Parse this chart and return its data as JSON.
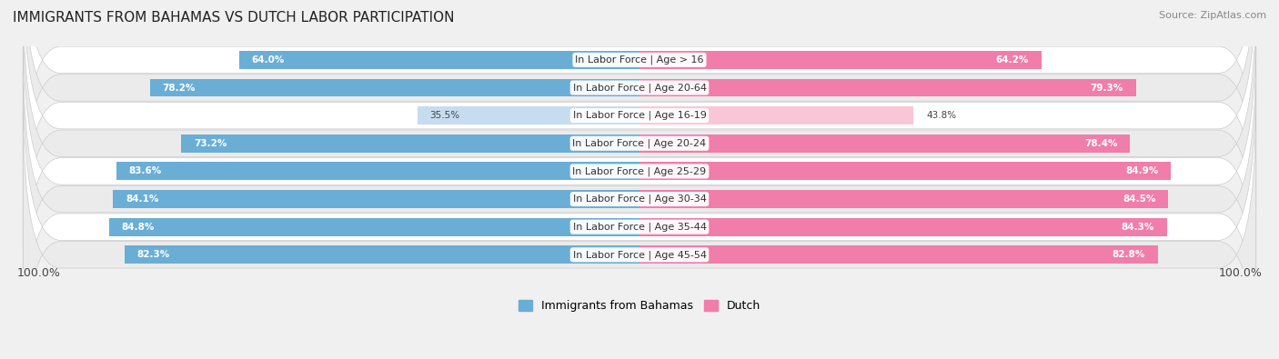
{
  "title": "IMMIGRANTS FROM BAHAMAS VS DUTCH LABOR PARTICIPATION",
  "source": "Source: ZipAtlas.com",
  "categories": [
    "In Labor Force | Age > 16",
    "In Labor Force | Age 20-64",
    "In Labor Force | Age 16-19",
    "In Labor Force | Age 20-24",
    "In Labor Force | Age 25-29",
    "In Labor Force | Age 30-34",
    "In Labor Force | Age 35-44",
    "In Labor Force | Age 45-54"
  ],
  "bahamas_values": [
    64.0,
    78.2,
    35.5,
    73.2,
    83.6,
    84.1,
    84.8,
    82.3
  ],
  "dutch_values": [
    64.2,
    79.3,
    43.8,
    78.4,
    84.9,
    84.5,
    84.3,
    82.8
  ],
  "bahamas_color_full": "#6aaed6",
  "bahamas_color_light": "#c6dcef",
  "dutch_color_full": "#f07daa",
  "dutch_color_light": "#f9c6d8",
  "bar_height": 0.65,
  "max_val": 100.0,
  "bg_color": "#f0f0f0",
  "row_bg_white": "#ffffff",
  "row_bg_light": "#ebebeb",
  "label_fontsize": 8.0,
  "title_fontsize": 11,
  "source_fontsize": 8,
  "value_fontsize": 7.5,
  "legend_fontsize": 9,
  "footer_label": "100.0%"
}
